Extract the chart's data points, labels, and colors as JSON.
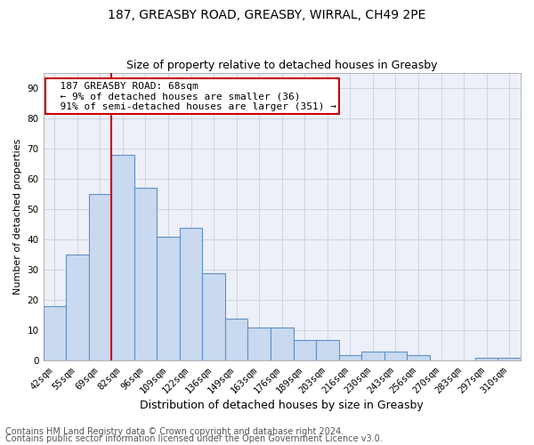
{
  "title": "187, GREASBY ROAD, GREASBY, WIRRAL, CH49 2PE",
  "subtitle": "Size of property relative to detached houses in Greasby",
  "xlabel": "Distribution of detached houses by size in Greasby",
  "ylabel": "Number of detached properties",
  "footer1": "Contains HM Land Registry data © Crown copyright and database right 2024.",
  "footer2": "Contains public sector information licensed under the Open Government Licence v3.0.",
  "categories": [
    "42sqm",
    "55sqm",
    "69sqm",
    "82sqm",
    "96sqm",
    "109sqm",
    "122sqm",
    "136sqm",
    "149sqm",
    "163sqm",
    "176sqm",
    "189sqm",
    "203sqm",
    "216sqm",
    "230sqm",
    "243sqm",
    "256sqm",
    "270sqm",
    "283sqm",
    "297sqm",
    "310sqm"
  ],
  "values": [
    18,
    35,
    55,
    68,
    57,
    41,
    44,
    29,
    14,
    11,
    11,
    7,
    7,
    2,
    3,
    3,
    2,
    0,
    0,
    1,
    1
  ],
  "bar_color": "#c8d9f0",
  "bar_edge_color": "#6090c8",
  "bar_linewidth": 0.8,
  "vline_color": "#cc0000",
  "vline_x_idx": 2.5,
  "annotation_text": "  187 GREASBY ROAD: 68sqm\n  ← 9% of detached houses are smaller (36)\n  91% of semi-detached houses are larger (351) →",
  "annotation_box_color": "white",
  "annotation_box_edge_color": "#cc0000",
  "ylim": [
    0,
    95
  ],
  "yticks": [
    0,
    10,
    20,
    30,
    40,
    50,
    60,
    70,
    80,
    90
  ],
  "grid_color": "#c8d0dc",
  "background_color": "#edf0f8",
  "title_fontsize": 10,
  "subtitle_fontsize": 9,
  "ylabel_fontsize": 8,
  "xlabel_fontsize": 9,
  "tick_fontsize": 7.5,
  "footer_fontsize": 7,
  "annotation_fontsize": 8
}
